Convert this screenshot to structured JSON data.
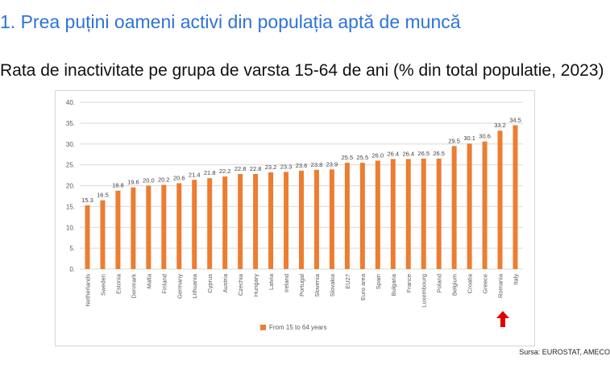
{
  "slide": {
    "heading": "1. Prea puțini oameni activi din populația aptă de muncă",
    "subheading": "Rata de inactivitate pe grupa de varsta 15-64 de ani (% din total populatie, 2023)",
    "source": "Sursa: EUROSTAT, AMECO"
  },
  "colors": {
    "bar": "#ed7d31",
    "heading": "#2e74d6",
    "arrow": "#e00000",
    "grid": "#d9d9d9",
    "axis_text": "#595959"
  },
  "icons": {
    "highlight_marker": "red-up-arrow-icon"
  },
  "chart_data": {
    "type": "bar",
    "categories": [
      "Netherlands",
      "Sweden",
      "Estonia",
      "Denmark",
      "Malta",
      "Finland",
      "Germany",
      "Lithuania",
      "Cyprus",
      "Austria",
      "Czechia",
      "Hungary",
      "Latvia",
      "Ireland",
      "Portugal",
      "Slovenia",
      "Slovakia",
      "EU27",
      "Euro area",
      "Spain",
      "Bulgaria",
      "France",
      "Luxembourg",
      "Poland",
      "Belgium",
      "Croatia",
      "Greece",
      "Romania",
      "Italy"
    ],
    "series": [
      {
        "name": "From 15 to 64 years",
        "values": [
          15.3,
          16.5,
          18.8,
          19.6,
          20.0,
          20.2,
          20.6,
          21.4,
          21.8,
          22.2,
          22.8,
          22.8,
          23.2,
          23.3,
          23.6,
          23.8,
          23.9,
          25.5,
          25.5,
          26.0,
          26.4,
          26.4,
          26.5,
          26.5,
          29.5,
          30.1,
          30.6,
          33.2,
          34.5
        ]
      }
    ],
    "value_labels": [
      "15.3",
      "16.5",
      "18.8",
      "19.6",
      "20.0",
      "20.2",
      "20.6",
      "21.4",
      "21.8",
      "22.2",
      "22.8",
      "22.8",
      "23.2",
      "23.3",
      "23.6",
      "23.8",
      "23.9",
      "25.5",
      "25.5",
      "26.0",
      "26.4",
      "26.4",
      "26.5",
      "26.5",
      "29.5",
      "30.1",
      "30.6",
      "33.2",
      "34.5"
    ],
    "yticks": [
      "0.",
      "5.",
      "10.",
      "15.",
      "20.",
      "25.",
      "30.",
      "35.",
      "40."
    ],
    "ylim": [
      0,
      40
    ],
    "grid": true,
    "legend": "bottom",
    "highlight_category": "Romania"
  }
}
